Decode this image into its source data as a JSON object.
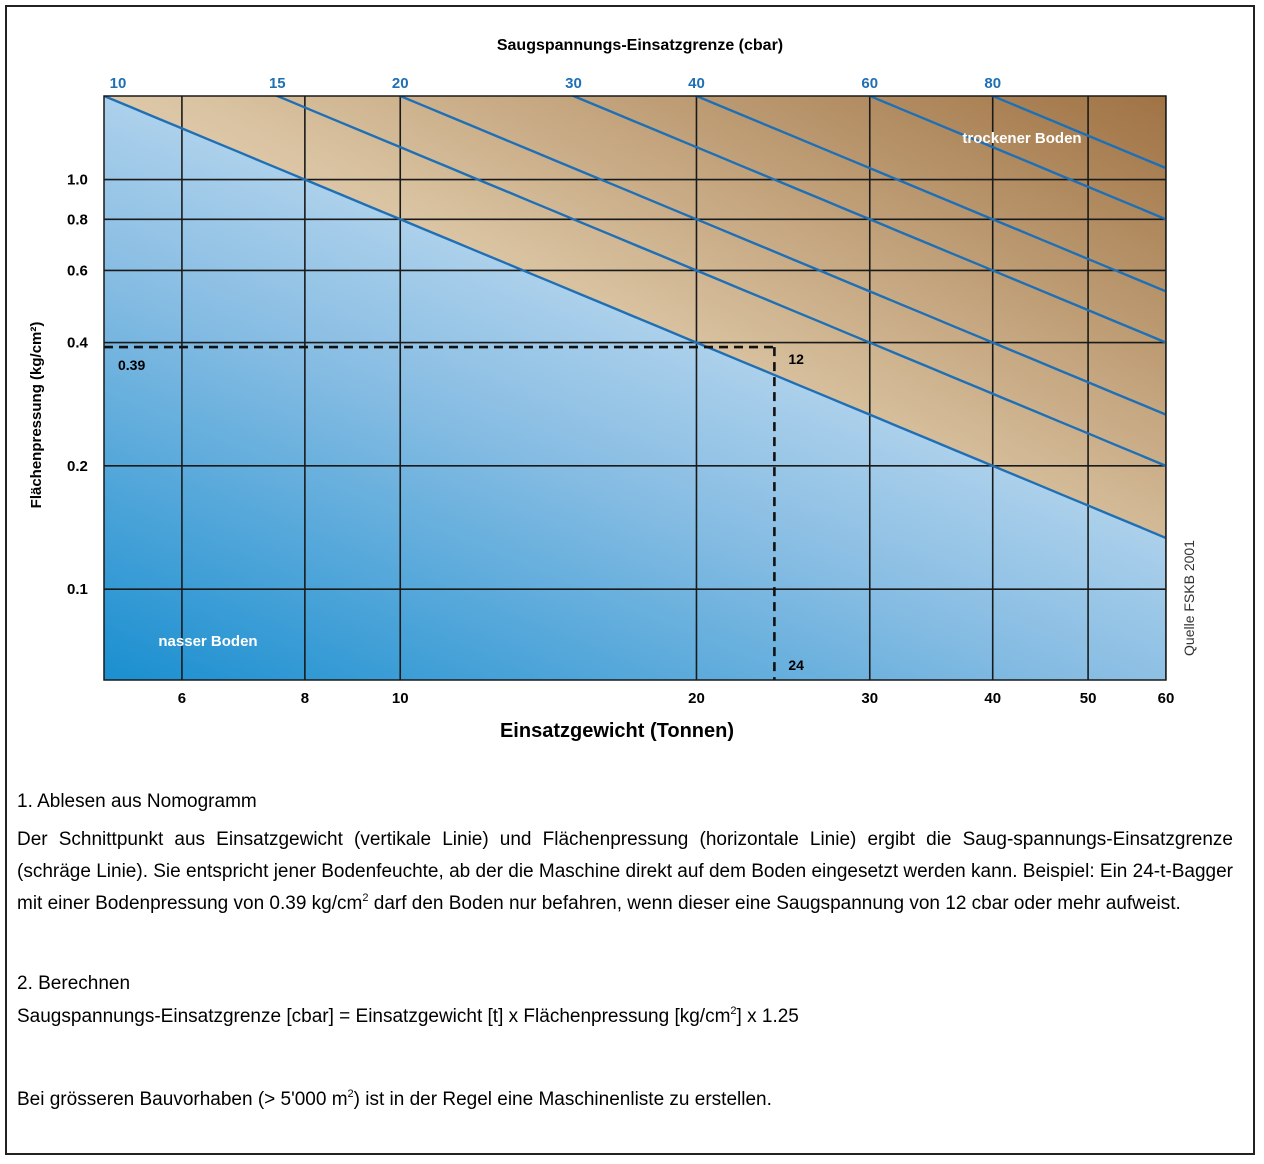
{
  "chart_data": {
    "type": "line",
    "title": "Saugspannungs-Einsatzgrenze (cbar)",
    "xlabel": "Einsatzgewicht (Tonnen)",
    "ylabel": "Flächenpressung (kg/cm²)",
    "x_scale": "log",
    "y_scale": "log",
    "xlim": [
      5,
      60
    ],
    "ylim": [
      0.06,
      1.6
    ],
    "x_ticks": [
      6,
      8,
      10,
      20,
      30,
      40,
      50,
      60
    ],
    "y_ticks": [
      1.0,
      0.8,
      0.6,
      0.4,
      0.2,
      0.1
    ],
    "y_tick_labels": [
      "1.0",
      "0.8",
      "0.6",
      "0.4",
      "0.2",
      "0.1"
    ],
    "top_axis_ticks": [
      10,
      15,
      20,
      30,
      40,
      60,
      80
    ],
    "grid": true,
    "lines": [
      {
        "cbar": 10,
        "formula": "y = cbar / (1.25 * x)"
      },
      {
        "cbar": 15,
        "formula": "y = cbar / (1.25 * x)"
      },
      {
        "cbar": 20,
        "formula": "y = cbar / (1.25 * x)"
      },
      {
        "cbar": 30,
        "formula": "y = cbar / (1.25 * x)"
      },
      {
        "cbar": 40,
        "formula": "y = cbar / (1.25 * x)"
      },
      {
        "cbar": 60,
        "formula": "y = cbar / (1.25 * x)"
      },
      {
        "cbar": 80,
        "formula": "y = cbar / (1.25 * x)"
      }
    ],
    "example": {
      "x": 24,
      "y": 0.39,
      "cbar": 12,
      "x_label": "24",
      "y_label": "0.39",
      "cbar_label": "12"
    },
    "region_labels": {
      "dry": "trockener Boden",
      "wet": "nasser Boden"
    },
    "source": "Quelle FSKB 2001",
    "colors": {
      "line": "#1f6fb5",
      "tick_top": "#1f6fb5",
      "wet": "#1a8fd0",
      "dry": "#9a6b3b",
      "grid": "#1a1a1a"
    }
  },
  "text": {
    "s1_title": "1. Ablesen aus Nomogramm",
    "s1_part1": "Der Schnittpunkt aus Einsatzgewicht (vertikale Linie) und Flächenpressung (horizontale Linie) ergibt die Saug-spannungs-Einsatzgrenze (schräge Linie). Sie entspricht jener Bodenfeuchte, ab der die Maschine direkt auf dem Boden eingesetzt werden kann. Beispiel: Ein 24-t-Bagger mit einer Bodenpressung von 0.39 kg/cm",
    "s1_sup": "2",
    "s1_part2": " darf den Boden nur befahren, wenn dieser eine Saugspannung von 12 cbar oder mehr aufweist.",
    "s2_title": "2. Berechnen",
    "s2_part1": "Saugspannungs-Einsatzgrenze [cbar] = Einsatzgewicht [t] x Flächenpressung [kg/cm",
    "s2_sup": "2",
    "s2_part2": "] x 1.25",
    "s3_part1": "Bei grösseren Bauvorhaben (> 5'000 m",
    "s3_sup": "2",
    "s3_part2": ") ist in der Regel eine Maschinenliste zu erstellen."
  }
}
